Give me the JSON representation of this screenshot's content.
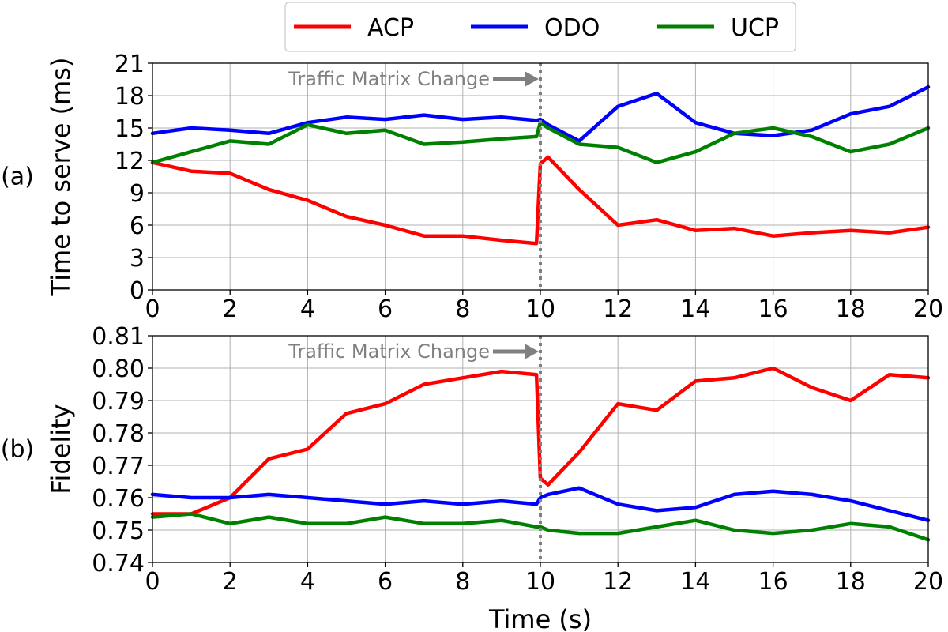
{
  "legend": {
    "placement": "top-center",
    "entries": [
      {
        "label": "ACP",
        "color": "#ff0000"
      },
      {
        "label": "ODO",
        "color": "#0000ff"
      },
      {
        "label": "UCP",
        "color": "#008000"
      }
    ]
  },
  "xlabel": "Time (s)",
  "colors": {
    "annotation": "#808080",
    "grid": "#b0b0b0"
  },
  "chart_data": [
    {
      "type": "line",
      "panel_label": "(a)",
      "ylabel": "Time to serve (ms)",
      "xlim": [
        0,
        20
      ],
      "ylim": [
        0,
        21
      ],
      "grid": true,
      "xticks": [
        0,
        2,
        4,
        6,
        8,
        10,
        12,
        14,
        16,
        18,
        20
      ],
      "yticks": [
        0,
        3,
        6,
        9,
        12,
        15,
        18,
        21
      ],
      "ytick_labels": [
        "0",
        "3",
        "6",
        "9",
        "12",
        "15",
        "18",
        "21"
      ],
      "annotation": {
        "text": "Traffic Matrix Change",
        "x": 10
      },
      "x": [
        0,
        1,
        2,
        3,
        4,
        5,
        6,
        7,
        8,
        9,
        9.9,
        10,
        10.2,
        11,
        12,
        13,
        14,
        15,
        16,
        17,
        18,
        19,
        20
      ],
      "series": [
        {
          "name": "ACP",
          "values": [
            11.8,
            11.0,
            10.8,
            9.3,
            8.3,
            6.8,
            6.0,
            5.0,
            5.0,
            4.6,
            4.3,
            11.7,
            12.3,
            9.3,
            6.0,
            6.5,
            5.5,
            5.7,
            5.0,
            5.3,
            5.5,
            5.3,
            5.8
          ]
        },
        {
          "name": "ODO",
          "values": [
            14.5,
            15.0,
            14.8,
            14.5,
            15.5,
            16.0,
            15.8,
            16.2,
            15.8,
            16.0,
            15.7,
            15.8,
            15.3,
            13.8,
            17.0,
            18.2,
            15.5,
            14.5,
            14.3,
            14.8,
            16.3,
            17.0,
            18.8
          ]
        },
        {
          "name": "UCP",
          "values": [
            11.8,
            12.8,
            13.8,
            13.5,
            15.3,
            14.5,
            14.8,
            13.5,
            13.7,
            14.0,
            14.2,
            15.5,
            15.0,
            13.5,
            13.2,
            11.8,
            12.8,
            14.5,
            15.0,
            14.2,
            12.8,
            13.5,
            15.0
          ]
        }
      ]
    },
    {
      "type": "line",
      "panel_label": "(b)",
      "ylabel": "Fidelity",
      "xlim": [
        0,
        20
      ],
      "ylim": [
        0.74,
        0.81
      ],
      "grid": true,
      "xticks": [
        0,
        2,
        4,
        6,
        8,
        10,
        12,
        14,
        16,
        18,
        20
      ],
      "yticks": [
        0.74,
        0.75,
        0.76,
        0.77,
        0.78,
        0.79,
        0.8,
        0.81
      ],
      "ytick_labels": [
        "0.74",
        "0.75",
        "0.76",
        "0.77",
        "0.78",
        "0.79",
        "0.80",
        "0.81"
      ],
      "annotation": {
        "text": "Traffic Matrix Change",
        "x": 10
      },
      "x": [
        0,
        1,
        2,
        3,
        4,
        5,
        6,
        7,
        8,
        9,
        9.9,
        10,
        10.2,
        11,
        12,
        13,
        14,
        15,
        16,
        17,
        18,
        19,
        20
      ],
      "series": [
        {
          "name": "ACP",
          "values": [
            0.755,
            0.755,
            0.76,
            0.772,
            0.775,
            0.786,
            0.789,
            0.795,
            0.797,
            0.799,
            0.798,
            0.766,
            0.764,
            0.774,
            0.789,
            0.787,
            0.796,
            0.797,
            0.8,
            0.794,
            0.79,
            0.798,
            0.797
          ]
        },
        {
          "name": "ODO",
          "values": [
            0.761,
            0.76,
            0.76,
            0.761,
            0.76,
            0.759,
            0.758,
            0.759,
            0.758,
            0.759,
            0.758,
            0.76,
            0.761,
            0.763,
            0.758,
            0.756,
            0.757,
            0.761,
            0.762,
            0.761,
            0.759,
            0.756,
            0.753
          ]
        },
        {
          "name": "UCP",
          "values": [
            0.754,
            0.755,
            0.752,
            0.754,
            0.752,
            0.752,
            0.754,
            0.752,
            0.752,
            0.753,
            0.751,
            0.751,
            0.75,
            0.749,
            0.749,
            0.751,
            0.753,
            0.75,
            0.749,
            0.75,
            0.752,
            0.751,
            0.747
          ]
        }
      ]
    }
  ]
}
